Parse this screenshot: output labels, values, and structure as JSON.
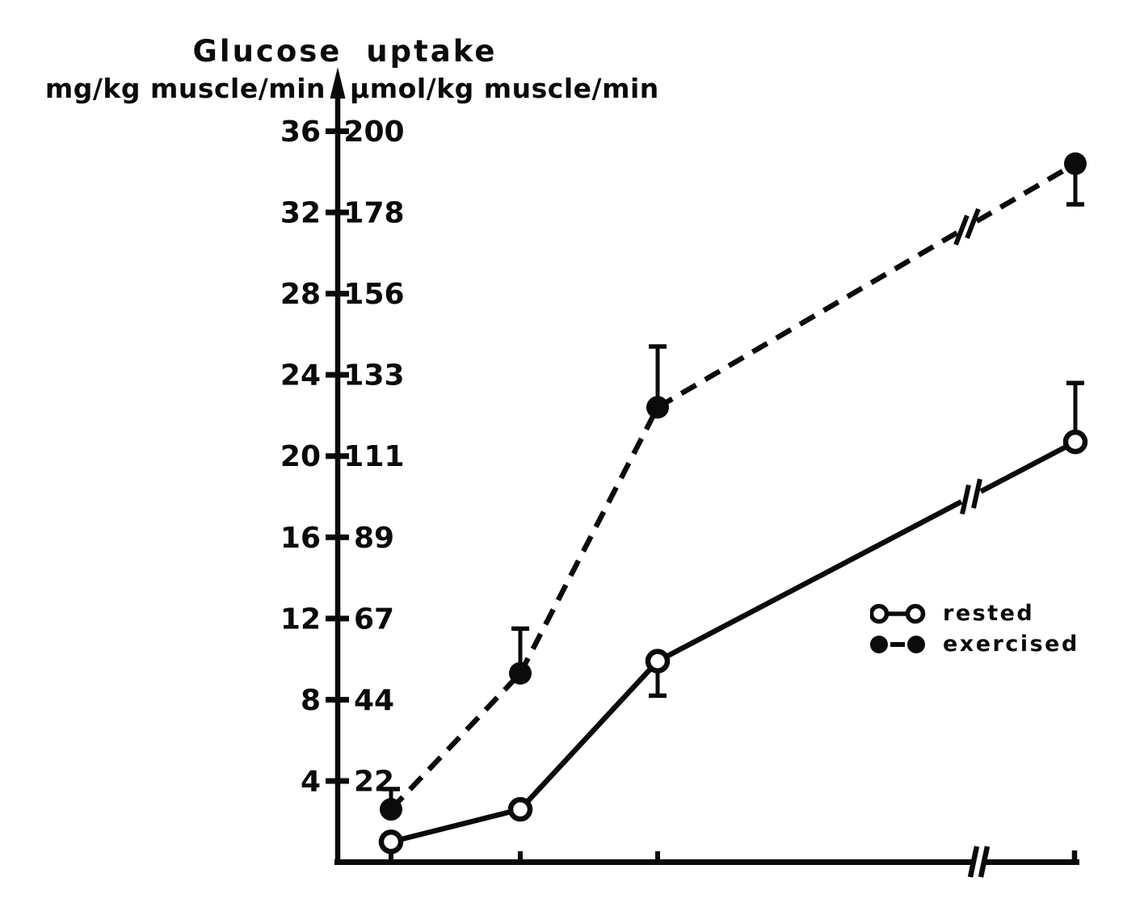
{
  "chart_data": {
    "type": "line",
    "title": "Glucose uptake",
    "y_axis_left": {
      "label": "mg/kg muscle/min",
      "ticks": [
        36,
        32,
        28,
        24,
        20,
        16,
        12,
        8,
        4
      ],
      "range": [
        0,
        38
      ]
    },
    "y_axis_right": {
      "label": "µmol/kg muscle/min",
      "ticks": [
        "200",
        "178",
        "156",
        "133",
        "111",
        "89",
        "67",
        "44",
        "22"
      ]
    },
    "x_axis": {
      "labels": [],
      "tick_count": 4,
      "axis_break_before_last_tick": true
    },
    "series": [
      {
        "name": "rested",
        "marker": "open-circle",
        "line_style": "solid",
        "values_mg": [
          1.0,
          2.6,
          9.9,
          20.7
        ],
        "error_up": [
          0,
          0,
          0,
          2.9
        ],
        "error_down": [
          0,
          0,
          1.7,
          0
        ],
        "line_break_before_last": true
      },
      {
        "name": "exercised",
        "marker": "filled-circle",
        "line_style": "dashed",
        "values_mg": [
          2.6,
          9.3,
          22.4,
          34.4
        ],
        "error_up": [
          1.0,
          2.2,
          3.0,
          0
        ],
        "error_down": [
          0,
          0,
          0,
          2.0
        ],
        "line_break_before_last": true
      }
    ],
    "legend": {
      "position": "middle-right"
    },
    "ink_color": "#0b0b0b",
    "background_color": "#ffffff",
    "grid": false
  }
}
